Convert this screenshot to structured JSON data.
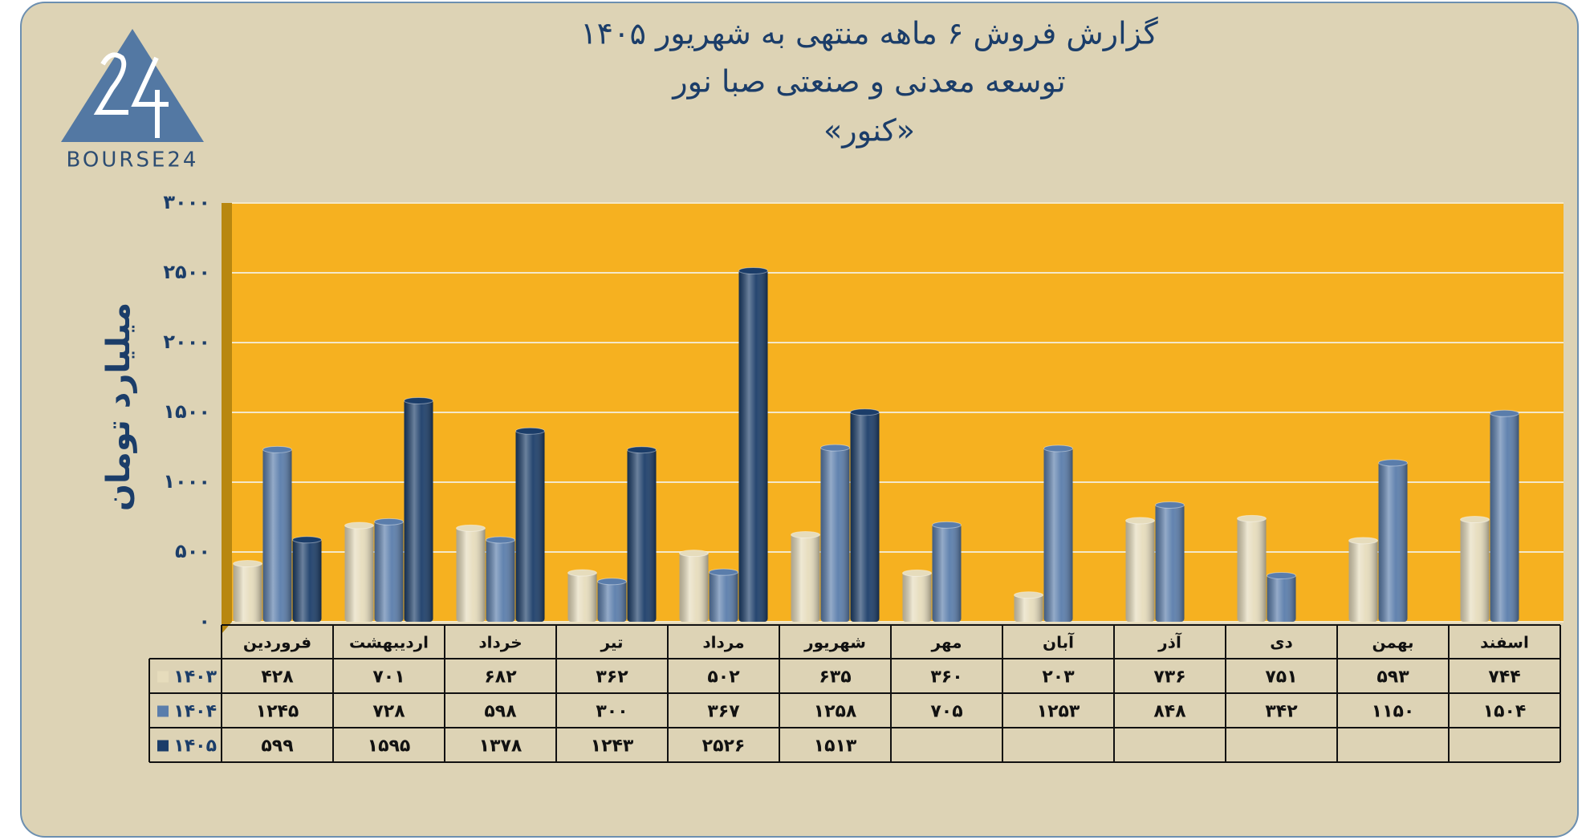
{
  "logo_text": "BOURSE24",
  "chart_data": {
    "type": "bar",
    "title": "گزارش  فروش ۶ ماهه منتهی به شهریور ۱۴۰۵",
    "subtitle": "توسعه معدنی و صنعتی صبا نور",
    "subtitle2": "«کنور»",
    "y_label": "میلیارد تومان",
    "categories": [
      "فروردین",
      "اردیبهشت",
      "خرداد",
      "تیر",
      "مرداد",
      "شهریور",
      "مهر",
      "آبان",
      "آذر",
      "دی",
      "بهمن",
      "اسفند"
    ],
    "series": [
      {
        "name": "۱۴۰۳",
        "color": "#e6dcbc",
        "values": [
          428,
          701,
          682,
          362,
          502,
          635,
          360,
          203,
          736,
          751,
          593,
          744
        ],
        "value_labels": [
          "۴۲۸",
          "۷۰۱",
          "۶۸۲",
          "۳۶۲",
          "۵۰۲",
          "۶۳۵",
          "۳۶۰",
          "۲۰۳",
          "۷۳۶",
          "۷۵۱",
          "۵۹۳",
          "۷۴۴"
        ]
      },
      {
        "name": "۱۴۰۴",
        "color": "#5a7dab",
        "values": [
          1245,
          728,
          598,
          300,
          367,
          1258,
          705,
          1253,
          848,
          342,
          1150,
          1504
        ],
        "value_labels": [
          "۱۲۴۵",
          "۷۲۸",
          "۵۹۸",
          "۳۰۰",
          "۳۶۷",
          "۱۲۵۸",
          "۷۰۵",
          "۱۲۵۳",
          "۸۴۸",
          "۳۴۲",
          "۱۱۵۰",
          "۱۵۰۴"
        ]
      },
      {
        "name": "۱۴۰۵",
        "color": "#1b3d69",
        "values": [
          599,
          1595,
          1378,
          1243,
          2526,
          1513,
          null,
          null,
          null,
          null,
          null,
          null
        ],
        "value_labels": [
          "۵۹۹",
          "۱۵۹۵",
          "۱۳۷۸",
          "۱۲۴۳",
          "۲۵۲۶",
          "۱۵۱۳",
          null,
          null,
          null,
          null,
          null,
          null
        ]
      }
    ],
    "ylim": [
      0,
      3000
    ],
    "yticks": [
      {
        "value": 0,
        "label": "۰"
      },
      {
        "value": 500,
        "label": "۵۰۰"
      },
      {
        "value": 1000,
        "label": "۱۰۰۰"
      },
      {
        "value": 1500,
        "label": "۱۵۰۰"
      },
      {
        "value": 2000,
        "label": "۲۰۰۰"
      },
      {
        "value": 2500,
        "label": "۲۵۰۰"
      },
      {
        "value": 3000,
        "label": "۳۰۰۰"
      }
    ],
    "grid": true,
    "plot_color": "#f6b120"
  }
}
